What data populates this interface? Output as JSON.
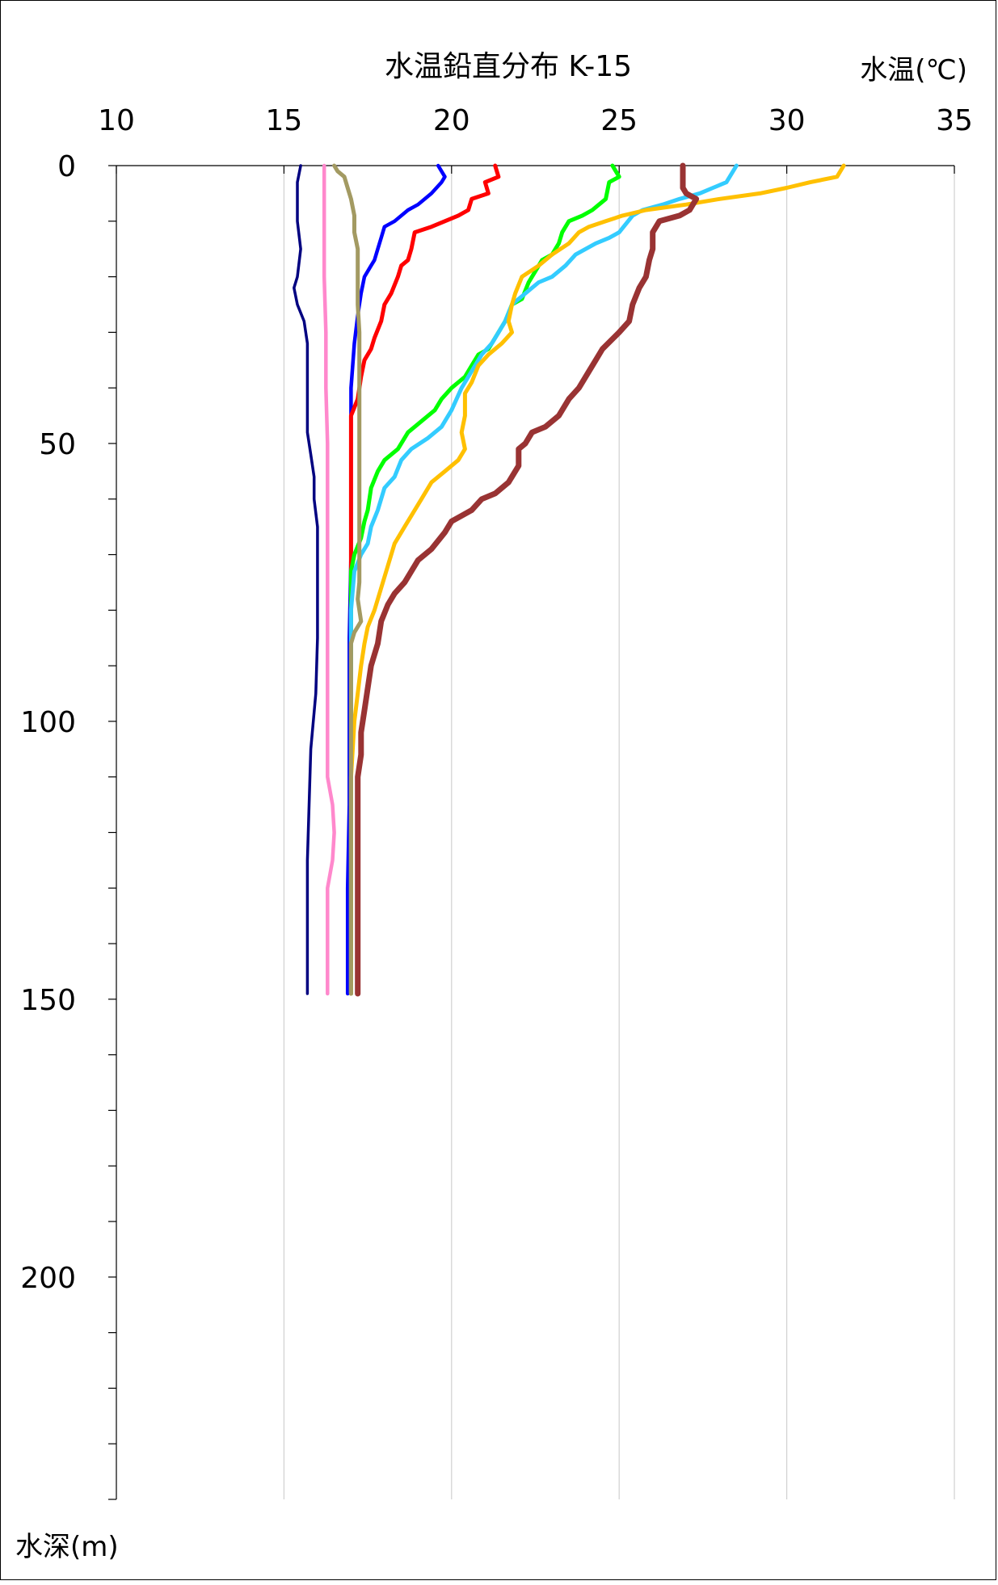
{
  "chart_data": {
    "type": "line",
    "title": "水温鉛直分布 K-15",
    "xlabel": "水温(℃)",
    "ylabel": "水深(m)",
    "x_axis_position": "top",
    "y_axis_inverted": true,
    "xlim": [
      10,
      35
    ],
    "ylim": [
      0,
      240
    ],
    "x_ticks": [
      "10",
      "15",
      "20",
      "25",
      "30",
      "35"
    ],
    "y_ticks": [
      "0",
      "50",
      "100",
      "150",
      "200"
    ],
    "y_minor_step": 10,
    "grid": "vertical major gridlines",
    "legend": "none",
    "series": [
      {
        "color": "#000080",
        "points": [
          [
            15.5,
            0
          ],
          [
            15.4,
            3
          ],
          [
            15.4,
            6
          ],
          [
            15.4,
            10
          ],
          [
            15.5,
            15
          ],
          [
            15.4,
            20
          ],
          [
            15.3,
            22
          ],
          [
            15.4,
            25
          ],
          [
            15.6,
            28
          ],
          [
            15.7,
            32
          ],
          [
            15.7,
            40
          ],
          [
            15.7,
            48
          ],
          [
            15.8,
            52
          ],
          [
            15.9,
            56
          ],
          [
            15.9,
            60
          ],
          [
            16.0,
            65
          ],
          [
            16.0,
            75
          ],
          [
            16.0,
            85
          ],
          [
            15.95,
            95
          ],
          [
            15.8,
            105
          ],
          [
            15.75,
            115
          ],
          [
            15.7,
            125
          ],
          [
            15.7,
            135
          ],
          [
            15.7,
            140
          ],
          [
            15.7,
            149
          ]
        ]
      },
      {
        "color": "#0000FF",
        "points": [
          [
            19.6,
            0
          ],
          [
            19.8,
            2
          ],
          [
            19.7,
            3
          ],
          [
            19.4,
            5
          ],
          [
            19.0,
            7
          ],
          [
            18.7,
            8
          ],
          [
            18.3,
            10
          ],
          [
            18.0,
            11
          ],
          [
            17.9,
            13
          ],
          [
            17.8,
            15
          ],
          [
            17.7,
            17
          ],
          [
            17.6,
            18
          ],
          [
            17.4,
            20
          ],
          [
            17.3,
            23
          ],
          [
            17.2,
            27
          ],
          [
            17.1,
            32
          ],
          [
            17.0,
            40
          ],
          [
            17.0,
            50
          ],
          [
            17.0,
            60
          ],
          [
            17.0,
            70
          ],
          [
            16.95,
            85
          ],
          [
            16.95,
            100
          ],
          [
            16.95,
            115
          ],
          [
            16.9,
            130
          ],
          [
            16.9,
            140
          ],
          [
            16.9,
            149
          ]
        ]
      },
      {
        "color": "#FF0000",
        "points": [
          [
            21.3,
            0
          ],
          [
            21.4,
            2
          ],
          [
            21.0,
            3
          ],
          [
            21.1,
            5
          ],
          [
            20.6,
            6
          ],
          [
            20.5,
            8
          ],
          [
            20.2,
            9
          ],
          [
            19.8,
            10
          ],
          [
            19.4,
            11
          ],
          [
            18.9,
            12
          ],
          [
            18.8,
            15
          ],
          [
            18.7,
            17
          ],
          [
            18.5,
            18
          ],
          [
            18.4,
            20
          ],
          [
            18.2,
            23
          ],
          [
            18.0,
            25
          ],
          [
            17.9,
            28
          ],
          [
            17.7,
            31
          ],
          [
            17.6,
            33
          ],
          [
            17.4,
            35
          ],
          [
            17.3,
            38
          ],
          [
            17.2,
            42
          ],
          [
            17.0,
            45
          ],
          [
            17.0,
            55
          ],
          [
            17.0,
            70
          ],
          [
            17.0,
            85
          ],
          [
            17.0,
            100
          ],
          [
            17.0,
            115
          ],
          [
            17.0,
            130
          ],
          [
            17.0,
            140
          ],
          [
            17.0,
            149
          ]
        ]
      },
      {
        "color": "#00FF00",
        "points": [
          [
            24.8,
            0
          ],
          [
            25.0,
            2
          ],
          [
            24.7,
            3
          ],
          [
            24.6,
            6
          ],
          [
            24.2,
            8
          ],
          [
            23.9,
            9
          ],
          [
            23.5,
            10
          ],
          [
            23.3,
            12
          ],
          [
            23.2,
            14
          ],
          [
            23.0,
            16
          ],
          [
            22.7,
            17
          ],
          [
            22.5,
            19
          ],
          [
            22.3,
            21
          ],
          [
            22.1,
            24
          ],
          [
            21.8,
            25
          ],
          [
            21.6,
            28
          ],
          [
            21.3,
            31
          ],
          [
            21.1,
            33
          ],
          [
            20.8,
            34
          ],
          [
            20.6,
            36
          ],
          [
            20.4,
            38
          ],
          [
            20.0,
            40
          ],
          [
            19.7,
            42
          ],
          [
            19.5,
            44
          ],
          [
            19.1,
            46
          ],
          [
            18.7,
            48
          ],
          [
            18.4,
            51
          ],
          [
            18.0,
            53
          ],
          [
            17.8,
            55
          ],
          [
            17.6,
            58
          ],
          [
            17.5,
            62
          ],
          [
            17.4,
            64
          ],
          [
            17.3,
            67
          ],
          [
            17.1,
            70
          ],
          [
            17.0,
            73
          ],
          [
            17.0,
            80
          ],
          [
            17.0,
            90
          ],
          [
            17.0,
            100
          ],
          [
            17.0,
            115
          ],
          [
            17.0,
            130
          ],
          [
            17.0,
            140
          ],
          [
            17.0,
            149
          ]
        ]
      },
      {
        "color": "#33CCFF",
        "points": [
          [
            28.5,
            0
          ],
          [
            28.2,
            3
          ],
          [
            27.8,
            4
          ],
          [
            27.4,
            5
          ],
          [
            26.8,
            6
          ],
          [
            26.3,
            7
          ],
          [
            25.7,
            8
          ],
          [
            25.4,
            9
          ],
          [
            25.0,
            12
          ],
          [
            24.7,
            13
          ],
          [
            24.3,
            14
          ],
          [
            23.7,
            16
          ],
          [
            23.4,
            18
          ],
          [
            23.2,
            19
          ],
          [
            23.0,
            20
          ],
          [
            22.6,
            21
          ],
          [
            22.2,
            23
          ],
          [
            21.8,
            25
          ],
          [
            21.6,
            28
          ],
          [
            21.4,
            30
          ],
          [
            21.2,
            32
          ],
          [
            20.9,
            34
          ],
          [
            20.6,
            37
          ],
          [
            20.3,
            40
          ],
          [
            20.0,
            44
          ],
          [
            19.7,
            47
          ],
          [
            19.3,
            49
          ],
          [
            18.8,
            51
          ],
          [
            18.5,
            53
          ],
          [
            18.3,
            56
          ],
          [
            18.0,
            58
          ],
          [
            17.8,
            62
          ],
          [
            17.6,
            65
          ],
          [
            17.5,
            68
          ],
          [
            17.3,
            70
          ],
          [
            17.1,
            73
          ],
          [
            17.0,
            80
          ],
          [
            17.0,
            90
          ],
          [
            17.0,
            100
          ],
          [
            17.0,
            115
          ],
          [
            17.0,
            130
          ],
          [
            17.0,
            140
          ],
          [
            17.0,
            149
          ]
        ]
      },
      {
        "color": "#FFC000",
        "points": [
          [
            31.7,
            0
          ],
          [
            31.5,
            2
          ],
          [
            30.7,
            3
          ],
          [
            30.0,
            4
          ],
          [
            29.2,
            5
          ],
          [
            28.0,
            6
          ],
          [
            27.0,
            7
          ],
          [
            25.8,
            8
          ],
          [
            25.1,
            9
          ],
          [
            24.6,
            10
          ],
          [
            24.1,
            11
          ],
          [
            23.8,
            12
          ],
          [
            23.5,
            14
          ],
          [
            23.0,
            16
          ],
          [
            22.6,
            18
          ],
          [
            22.1,
            20
          ],
          [
            21.9,
            23
          ],
          [
            21.8,
            25
          ],
          [
            21.7,
            28
          ],
          [
            21.8,
            30
          ],
          [
            21.5,
            32
          ],
          [
            21.1,
            34
          ],
          [
            20.8,
            36
          ],
          [
            20.6,
            39
          ],
          [
            20.4,
            41
          ],
          [
            20.4,
            45
          ],
          [
            20.3,
            48
          ],
          [
            20.4,
            51
          ],
          [
            20.2,
            53
          ],
          [
            19.8,
            55
          ],
          [
            19.4,
            57
          ],
          [
            19.1,
            60
          ],
          [
            18.8,
            63
          ],
          [
            18.6,
            65
          ],
          [
            18.3,
            68
          ],
          [
            18.1,
            72
          ],
          [
            17.9,
            76
          ],
          [
            17.7,
            80
          ],
          [
            17.5,
            83
          ],
          [
            17.4,
            86
          ],
          [
            17.3,
            90
          ],
          [
            17.2,
            95
          ],
          [
            17.1,
            100
          ],
          [
            17.0,
            110
          ],
          [
            17.0,
            125
          ],
          [
            17.0,
            140
          ],
          [
            17.0,
            149
          ]
        ]
      },
      {
        "color": "#993333",
        "points": [
          [
            26.9,
            0
          ],
          [
            26.9,
            2
          ],
          [
            26.9,
            4
          ],
          [
            27.0,
            5
          ],
          [
            27.3,
            6
          ],
          [
            27.1,
            8
          ],
          [
            26.8,
            9
          ],
          [
            26.2,
            10
          ],
          [
            26.0,
            12
          ],
          [
            26.0,
            15
          ],
          [
            25.9,
            17
          ],
          [
            25.8,
            20
          ],
          [
            25.6,
            22
          ],
          [
            25.4,
            25
          ],
          [
            25.3,
            28
          ],
          [
            25.0,
            30
          ],
          [
            24.5,
            33
          ],
          [
            24.3,
            35
          ],
          [
            24.1,
            37
          ],
          [
            23.8,
            40
          ],
          [
            23.5,
            42
          ],
          [
            23.2,
            45
          ],
          [
            22.8,
            47
          ],
          [
            22.4,
            48
          ],
          [
            22.2,
            50
          ],
          [
            22.0,
            51
          ],
          [
            22.0,
            54
          ],
          [
            21.7,
            57
          ],
          [
            21.3,
            59
          ],
          [
            20.9,
            60
          ],
          [
            20.6,
            62
          ],
          [
            20.3,
            63
          ],
          [
            20.0,
            64
          ],
          [
            19.8,
            66
          ],
          [
            19.4,
            69
          ],
          [
            19.0,
            71
          ],
          [
            18.8,
            73
          ],
          [
            18.6,
            75
          ],
          [
            18.3,
            77
          ],
          [
            18.1,
            79
          ],
          [
            17.9,
            82
          ],
          [
            17.8,
            86
          ],
          [
            17.6,
            90
          ],
          [
            17.5,
            94
          ],
          [
            17.4,
            98
          ],
          [
            17.3,
            102
          ],
          [
            17.3,
            106
          ],
          [
            17.2,
            110
          ],
          [
            17.2,
            120
          ],
          [
            17.2,
            130
          ],
          [
            17.2,
            140
          ],
          [
            17.2,
            149
          ]
        ]
      },
      {
        "color": "#A39A62",
        "points": [
          [
            16.5,
            0
          ],
          [
            16.6,
            1
          ],
          [
            16.8,
            2
          ],
          [
            16.9,
            4
          ],
          [
            17.0,
            6
          ],
          [
            17.1,
            9
          ],
          [
            17.1,
            12
          ],
          [
            17.2,
            15
          ],
          [
            17.2,
            20
          ],
          [
            17.2,
            25
          ],
          [
            17.25,
            30
          ],
          [
            17.25,
            40
          ],
          [
            17.25,
            50
          ],
          [
            17.25,
            60
          ],
          [
            17.25,
            70
          ],
          [
            17.25,
            75
          ],
          [
            17.2,
            78
          ],
          [
            17.3,
            82
          ],
          [
            17.1,
            84
          ],
          [
            17.0,
            86
          ],
          [
            17.0,
            95
          ],
          [
            17.0,
            110
          ],
          [
            17.0,
            125
          ],
          [
            17.0,
            140
          ],
          [
            17.0,
            149
          ]
        ]
      },
      {
        "color": "#FF88CC",
        "points": [
          [
            16.2,
            0
          ],
          [
            16.2,
            10
          ],
          [
            16.2,
            20
          ],
          [
            16.25,
            30
          ],
          [
            16.25,
            40
          ],
          [
            16.3,
            50
          ],
          [
            16.3,
            60
          ],
          [
            16.3,
            70
          ],
          [
            16.3,
            80
          ],
          [
            16.3,
            90
          ],
          [
            16.3,
            100
          ],
          [
            16.3,
            110
          ],
          [
            16.45,
            115
          ],
          [
            16.5,
            120
          ],
          [
            16.45,
            125
          ],
          [
            16.3,
            130
          ],
          [
            16.3,
            140
          ],
          [
            16.3,
            149
          ]
        ]
      }
    ]
  }
}
